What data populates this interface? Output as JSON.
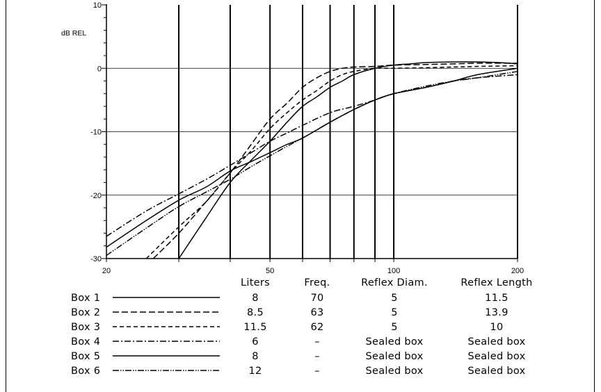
{
  "chart_data": {
    "type": "line",
    "ylabel": "dB REL",
    "xscale": "log",
    "xlim": [
      20,
      200
    ],
    "ylim": [
      -30,
      10
    ],
    "x_ticks": [
      20,
      50,
      100,
      200
    ],
    "y_ticks": [
      10,
      0,
      -10,
      -20,
      -30
    ],
    "vertical_grid_x": [
      30,
      40,
      50,
      60,
      70,
      80,
      90,
      100,
      200
    ],
    "horizontal_grid_y": [
      0,
      -10,
      -20
    ],
    "series": [
      {
        "name": "Box 1",
        "dash": "solid",
        "x": [
          30,
          35,
          40,
          45,
          50,
          55,
          60,
          65,
          70,
          75,
          80,
          90,
          100,
          110,
          120,
          140,
          160,
          180,
          200
        ],
        "y": [
          -30,
          -23.5,
          -18,
          -14.5,
          -11.5,
          -8.5,
          -6,
          -4.5,
          -3,
          -2,
          -1,
          0,
          0.5,
          0.7,
          0.9,
          1,
          1,
          0.9,
          0.7
        ]
      },
      {
        "name": "Box 2",
        "dash": "dash-long",
        "x": [
          26,
          30,
          35,
          40,
          45,
          50,
          55,
          60,
          65,
          70,
          75,
          80,
          90,
          100,
          120,
          140,
          160,
          200
        ],
        "y": [
          -30,
          -26,
          -21,
          -16.5,
          -12,
          -8,
          -5.5,
          -3,
          -1.5,
          -0.5,
          0,
          0.2,
          0.3,
          0.5,
          0.6,
          0.7,
          0.8,
          0.8
        ]
      },
      {
        "name": "Box 3",
        "dash": "dash-short",
        "x": [
          25,
          30,
          35,
          40,
          45,
          50,
          55,
          60,
          65,
          70,
          75,
          80,
          90,
          100,
          120,
          140,
          160,
          200
        ],
        "y": [
          -30,
          -25,
          -21,
          -16.5,
          -13,
          -9.5,
          -7,
          -5,
          -3.5,
          -2,
          -1,
          -0.5,
          0,
          0,
          0.1,
          0.2,
          0.3,
          0.4
        ]
      },
      {
        "name": "Box 4",
        "dash": "dash-dot",
        "x": [
          20,
          25,
          30,
          35,
          40,
          45,
          50,
          55,
          60,
          70,
          80,
          90,
          100,
          120,
          140,
          160,
          200
        ],
        "y": [
          -26.5,
          -22.5,
          -19.8,
          -17.5,
          -15.3,
          -13.3,
          -11.5,
          -10.2,
          -9,
          -7,
          -6,
          -5,
          -4,
          -3,
          -2,
          -1.5,
          -1
        ]
      },
      {
        "name": "Box 5",
        "dash": "solid",
        "x": [
          20,
          25,
          30,
          35,
          40,
          45,
          50,
          55,
          60,
          70,
          80,
          90,
          100,
          120,
          140,
          160,
          200
        ],
        "y": [
          -28.2,
          -24,
          -20.8,
          -18.7,
          -16.2,
          -14.7,
          -13.3,
          -12,
          -11,
          -8.5,
          -6.5,
          -5,
          -4,
          -3,
          -2,
          -1,
          0
        ]
      },
      {
        "name": "Box 6",
        "dash": "dash-dot-dot",
        "x": [
          20,
          25,
          30,
          35,
          40,
          45,
          50,
          55,
          60,
          70,
          80,
          90,
          100,
          120,
          140,
          160,
          200
        ],
        "y": [
          -29.5,
          -25.2,
          -21.8,
          -19.5,
          -17.5,
          -15.5,
          -13.8,
          -12.3,
          -11,
          -8.5,
          -6.5,
          -5,
          -4,
          -2.8,
          -2,
          -1.5,
          -0.5
        ]
      }
    ]
  },
  "table": {
    "headers": {
      "liters": "Liters",
      "freq": "Freq.",
      "diam": "Reflex Diam.",
      "length": "Reflex Length"
    },
    "rows": [
      {
        "label": "Box 1",
        "liters": "8",
        "freq": "70",
        "diam": "5",
        "length": "11.5"
      },
      {
        "label": "Box 2",
        "liters": "8.5",
        "freq": "63",
        "diam": "5",
        "length": "13.9"
      },
      {
        "label": "Box 3",
        "liters": "11.5",
        "freq": "62",
        "diam": "5",
        "length": "10"
      },
      {
        "label": "Box 4",
        "liters": "6",
        "freq": "–",
        "diam": "Sealed box",
        "length": "Sealed box"
      },
      {
        "label": "Box 5",
        "liters": "8",
        "freq": "–",
        "diam": "Sealed box",
        "length": "Sealed box"
      },
      {
        "label": "Box 6",
        "liters": "12",
        "freq": "–",
        "diam": "Sealed box",
        "length": "Sealed box"
      }
    ]
  }
}
